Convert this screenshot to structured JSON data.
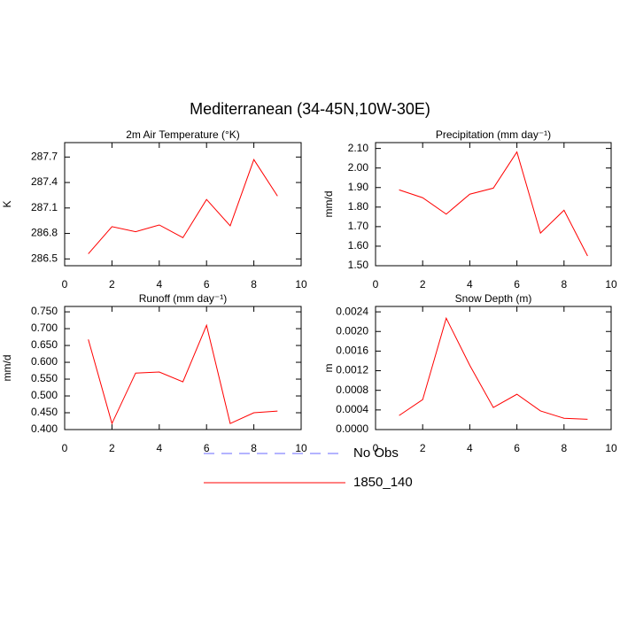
{
  "title": "Mediterranean (34-45N,10W-30E)",
  "chart_data": [
    {
      "type": "line",
      "title": "2m Air Temperature (°K)",
      "y_label": "K",
      "x": [
        1,
        2,
        3,
        4,
        5,
        6,
        7,
        8,
        9
      ],
      "series": [
        {
          "name": "1850_140",
          "color": "#ff0000",
          "values": [
            286.56,
            286.88,
            286.82,
            286.9,
            286.75,
            287.2,
            286.89,
            287.67,
            287.24
          ]
        }
      ],
      "xlim": [
        0,
        10
      ],
      "xticks": [
        0,
        2,
        4,
        6,
        8,
        10
      ],
      "ylim": [
        286.42,
        287.87
      ],
      "yticks": [
        286.5,
        286.8,
        287.1,
        287.4,
        287.7
      ]
    },
    {
      "type": "line",
      "title": "Precipitation (mm day⁻¹)",
      "y_label": "mm/d",
      "x": [
        1,
        2,
        3,
        4,
        5,
        6,
        7,
        8,
        9
      ],
      "series": [
        {
          "name": "1850_140",
          "color": "#ff0000",
          "values": [
            1.888,
            1.848,
            1.764,
            1.866,
            1.897,
            2.082,
            1.667,
            1.784,
            1.55
          ]
        }
      ],
      "xlim": [
        0,
        10
      ],
      "xticks": [
        0,
        2,
        4,
        6,
        8,
        10
      ],
      "ylim": [
        1.5,
        2.13
      ],
      "yticks": [
        {
          "value": 1.5,
          "label": "1.50"
        },
        {
          "value": 1.6,
          "label": "1.60"
        },
        {
          "value": 1.7,
          "label": "1.70"
        },
        {
          "value": 1.8,
          "label": "1.80"
        },
        {
          "value": 1.9,
          "label": "1.90"
        },
        {
          "value": 2.0,
          "label": "2.00"
        },
        {
          "value": 2.1,
          "label": "2.10"
        }
      ]
    },
    {
      "type": "line",
      "title": "Runoff (mm day⁻¹)",
      "y_label": "mm/d",
      "x": [
        1,
        2,
        3,
        4,
        5,
        6,
        7,
        8,
        9
      ],
      "series": [
        {
          "name": "1850_140",
          "color": "#ff0000",
          "values": [
            0.668,
            0.418,
            0.568,
            0.571,
            0.542,
            0.71,
            0.418,
            0.45,
            0.455
          ]
        }
      ],
      "xlim": [
        0,
        10
      ],
      "xticks": [
        0,
        2,
        4,
        6,
        8,
        10
      ],
      "ylim": [
        0.4,
        0.766
      ],
      "yticks": [
        {
          "value": 0.4,
          "label": "0.400"
        },
        {
          "value": 0.45,
          "label": "0.450"
        },
        {
          "value": 0.5,
          "label": "0.500"
        },
        {
          "value": 0.55,
          "label": "0.550"
        },
        {
          "value": 0.6,
          "label": "0.600"
        },
        {
          "value": 0.65,
          "label": "0.650"
        },
        {
          "value": 0.7,
          "label": "0.700"
        },
        {
          "value": 0.75,
          "label": "0.750"
        }
      ]
    },
    {
      "type": "line",
      "title": "Snow Depth (m)",
      "y_label": "m",
      "x": [
        1,
        2,
        3,
        4,
        5,
        6,
        7,
        8,
        9
      ],
      "series": [
        {
          "name": "1850_140",
          "color": "#ff0000",
          "values": [
            0.000287,
            0.00061,
            0.00227,
            0.00131,
            0.00045,
            0.00072,
            0.00038,
            0.00023,
            0.00021
          ]
        }
      ],
      "xlim": [
        0,
        10
      ],
      "xticks": [
        0,
        2,
        4,
        6,
        8,
        10
      ],
      "ylim": [
        0,
        0.00251
      ],
      "yticks": [
        {
          "value": 0,
          "label": "0.0000"
        },
        {
          "value": 0.0004,
          "label": "0.0004"
        },
        {
          "value": 0.0008,
          "label": "0.0008"
        },
        {
          "value": 0.0012,
          "label": "0.0012"
        },
        {
          "value": 0.0016,
          "label": "0.0016"
        },
        {
          "value": 0.002,
          "label": "0.0020"
        },
        {
          "value": 0.0024,
          "label": "0.0024"
        }
      ]
    }
  ],
  "legend": [
    {
      "name": "No Obs",
      "color": "#6a6aff",
      "dashed": true
    },
    {
      "name": "1850_140",
      "color": "#ff0000",
      "dashed": false
    }
  ]
}
